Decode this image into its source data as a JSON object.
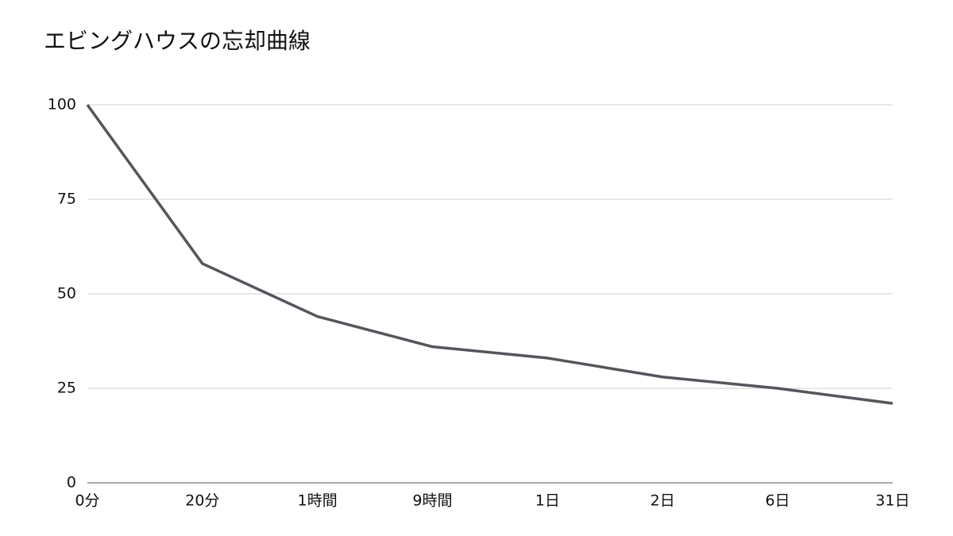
{
  "chart_data": {
    "type": "line",
    "title": "エビングハウスの忘却曲線",
    "categories": [
      "0分",
      "20分",
      "1時間",
      "9時間",
      "1日",
      "2日",
      "6日",
      "31日"
    ],
    "series": [
      {
        "color": "#54565c",
        "values": [
          100,
          58,
          44,
          36,
          33,
          28,
          25,
          21
        ]
      }
    ],
    "ylim": [
      0,
      100
    ],
    "yticks": [
      0,
      25,
      50,
      75,
      100
    ],
    "grid": true
  }
}
